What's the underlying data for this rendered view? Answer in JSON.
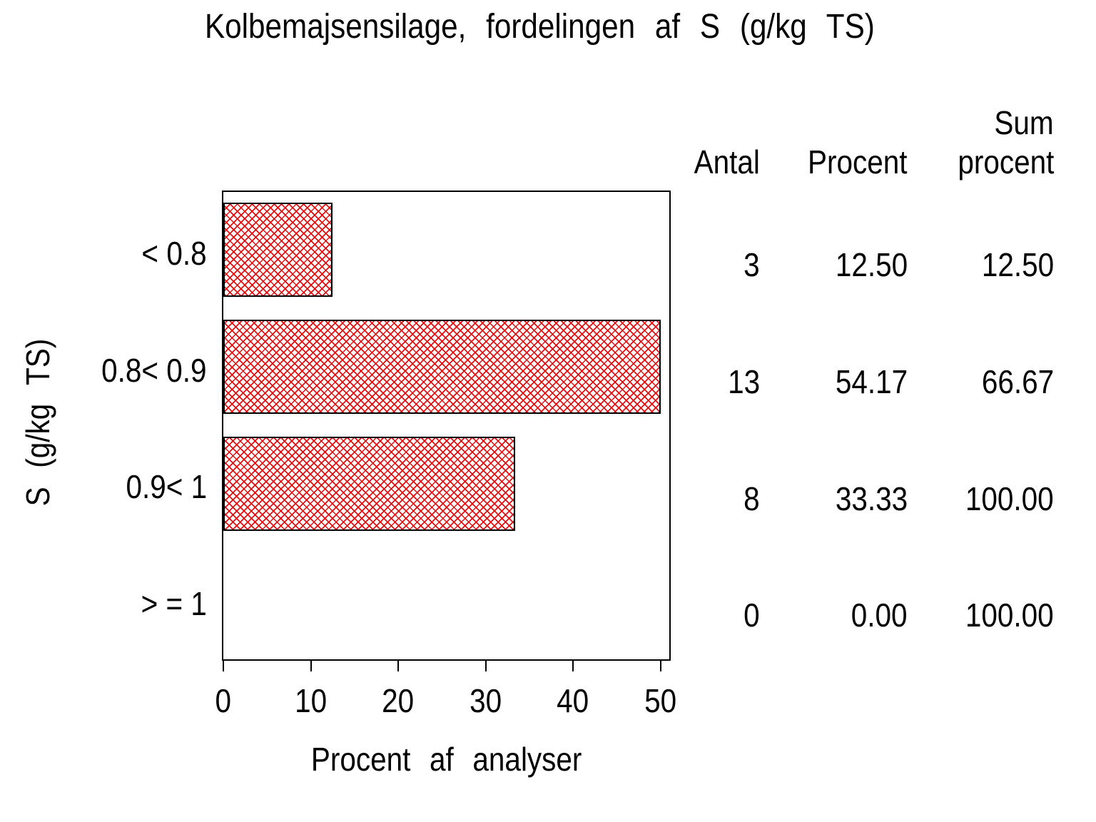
{
  "title": "Kolbemajsensilage,  fordelingen  af  S  (g/kg  TS)",
  "chart_data": {
    "type": "bar",
    "orientation": "horizontal",
    "title": "Kolbemajsensilage, fordelingen af S (g/kg TS)",
    "categories": [
      "< 0.8",
      "0.8< 0.9",
      "0.9< 1",
      "> = 1"
    ],
    "series": [
      {
        "name": "Procent af analyser",
        "values": [
          12.5,
          54.17,
          33.33,
          0.0
        ]
      }
    ],
    "counts": [
      3,
      13,
      8,
      0
    ],
    "cum_percent": [
      12.5,
      66.67,
      100.0,
      100.0
    ],
    "xlabel": "Procent  af  analyser",
    "ylabel": "S  (g/kg  TS)",
    "xlim": [
      0,
      50
    ],
    "xticks": [
      0,
      10,
      20,
      30,
      40,
      50
    ],
    "grid": false,
    "legend": false,
    "bar_fill": "red-crosshatch",
    "bar_hatch_color": "#e01010",
    "bar_border_color": "#000000"
  },
  "summary_table": {
    "headers": {
      "antal": "Antal",
      "procent": "Procent",
      "sum_line1": "Sum",
      "sum_line2": "procent"
    },
    "rows": [
      [
        "3",
        "12.50",
        "12.50"
      ],
      [
        "13",
        "54.17",
        "66.67"
      ],
      [
        "8",
        "33.33",
        "100.00"
      ],
      [
        "0",
        "0.00",
        "100.00"
      ]
    ]
  }
}
